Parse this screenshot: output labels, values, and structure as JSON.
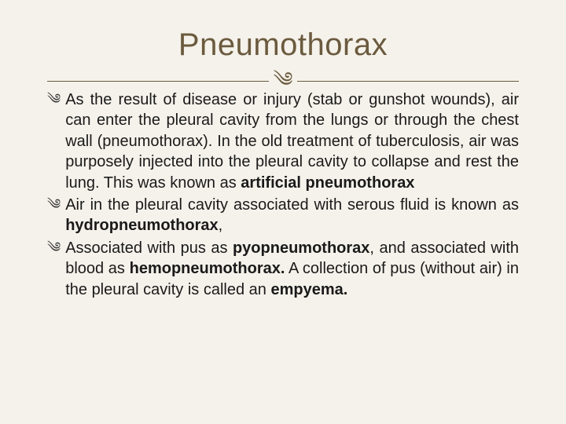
{
  "title": "Pneumothorax",
  "divider_glyph": "༄",
  "bullet_glyph": "༄",
  "colors": {
    "background": "#f5f2eb",
    "title_color": "#6b5a3e",
    "divider_color": "#6b5a3e",
    "text_color": "#1a1a1a"
  },
  "typography": {
    "title_fontsize": 40,
    "body_fontsize": 20,
    "title_weight": 400,
    "body_line_height": 1.32
  },
  "bullets": [
    {
      "segments": [
        {
          "t": "As the result of disease or injury (stab or gunshot wounds), air can enter the pleural cavity from the lungs or through the chest wall (pneumothorax). In the old treatment of tuberculosis, air was purposely injected into the pleural cavity to collapse and rest the lung. This was known as ",
          "b": false
        },
        {
          "t": "artificial pneumothorax",
          "b": true
        }
      ]
    },
    {
      "segments": [
        {
          "t": "Air in the pleural cavity associated with serous fluid is known as ",
          "b": false
        },
        {
          "t": "hydropneumothorax",
          "b": true
        },
        {
          "t": ",",
          "b": false
        }
      ]
    },
    {
      "segments": [
        {
          "t": "Associated with pus as ",
          "b": false
        },
        {
          "t": "pyopneumothorax",
          "b": true
        },
        {
          "t": ", and associated with blood as ",
          "b": false
        },
        {
          "t": "hemopneumothorax.",
          "b": true
        },
        {
          "t": " A collection of pus (without air) in the pleural cavity is called an ",
          "b": false
        },
        {
          "t": "empyema.",
          "b": true
        }
      ]
    }
  ]
}
